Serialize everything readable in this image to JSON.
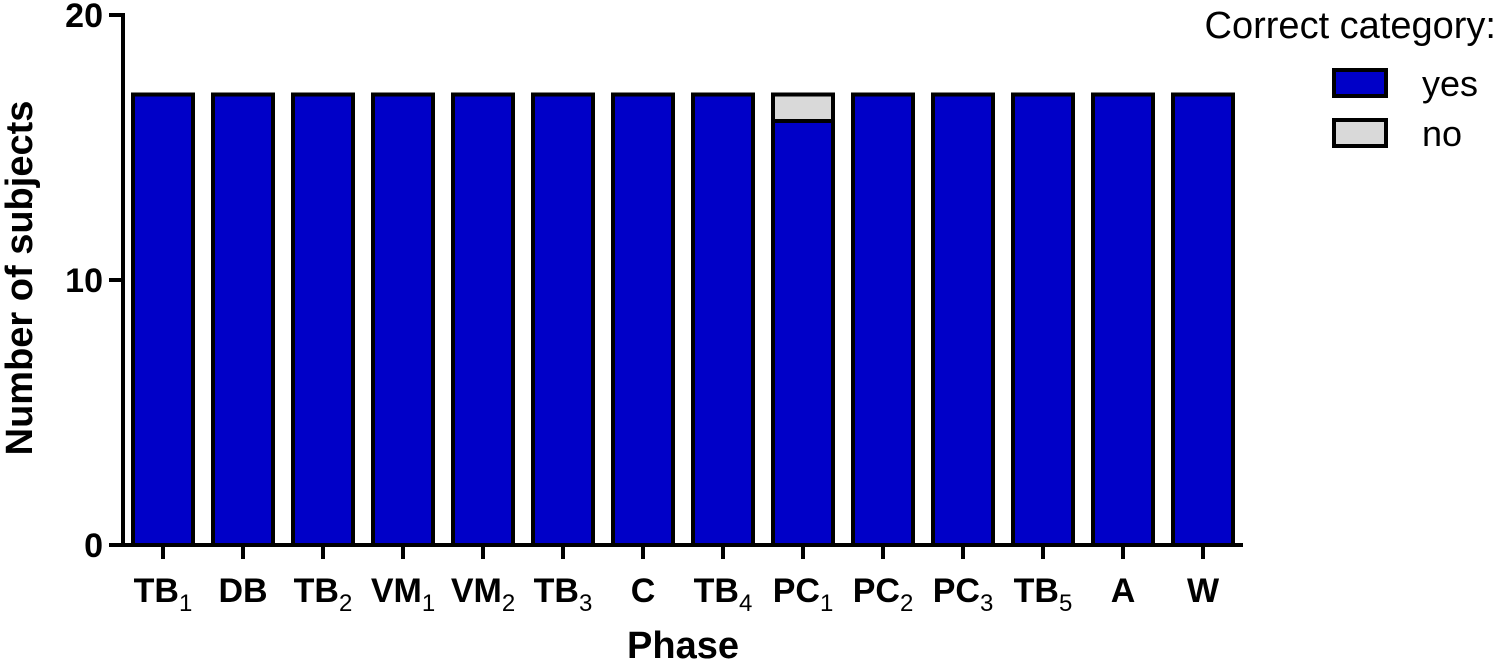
{
  "chart_data": {
    "type": "bar",
    "stacked": true,
    "xlabel": "Phase",
    "ylabel": "Number of subjects",
    "ylim": [
      0,
      20
    ],
    "yticks": [
      0,
      10,
      20
    ],
    "categories": [
      {
        "base": "TB",
        "sub": "1"
      },
      {
        "base": "DB",
        "sub": ""
      },
      {
        "base": "TB",
        "sub": "2"
      },
      {
        "base": "VM",
        "sub": "1"
      },
      {
        "base": "VM",
        "sub": "2"
      },
      {
        "base": "TB",
        "sub": "3"
      },
      {
        "base": "C",
        "sub": ""
      },
      {
        "base": "TB",
        "sub": "4"
      },
      {
        "base": "PC",
        "sub": "1"
      },
      {
        "base": "PC",
        "sub": "2"
      },
      {
        "base": "PC",
        "sub": "3"
      },
      {
        "base": "TB",
        "sub": "5"
      },
      {
        "base": "A",
        "sub": ""
      },
      {
        "base": "W",
        "sub": ""
      }
    ],
    "series": [
      {
        "name": "yes",
        "color": "#0000c8",
        "values": [
          17,
          17,
          17,
          17,
          17,
          17,
          17,
          17,
          16,
          17,
          17,
          17,
          17,
          17
        ]
      },
      {
        "name": "no",
        "color": "#d9d9d9",
        "values": [
          0,
          0,
          0,
          0,
          0,
          0,
          0,
          0,
          1,
          0,
          0,
          0,
          0,
          0
        ]
      }
    ],
    "legend": {
      "title": "Correct category:",
      "position": "top-right"
    }
  }
}
